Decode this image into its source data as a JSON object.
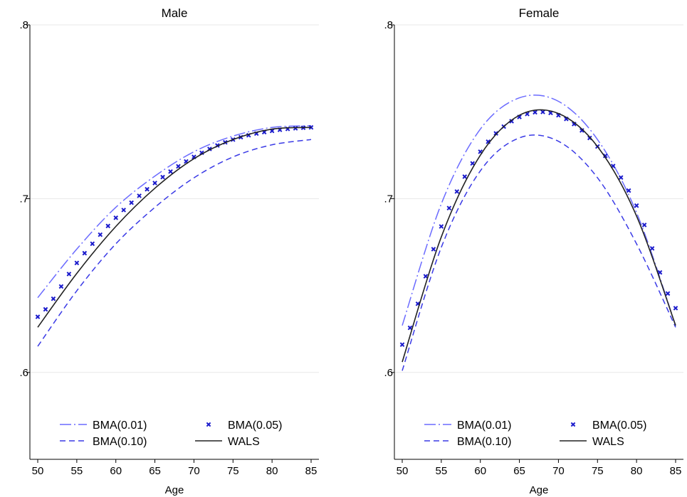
{
  "chart_data": [
    {
      "type": "line",
      "title": "Male",
      "xlabel": "Age",
      "ylabel": "",
      "xlim": [
        50,
        85
      ],
      "ylim": [
        0.55,
        0.8
      ],
      "xticks": [
        50,
        55,
        60,
        65,
        70,
        75,
        80,
        85
      ],
      "xtick_labels": [
        "50",
        "55",
        "60",
        "65",
        "70",
        "75",
        "80",
        "85"
      ],
      "yticks": [
        0.6,
        0.7,
        0.8
      ],
      "ytick_labels": [
        ".6",
        ".7",
        ".8"
      ],
      "grid": true,
      "legend": "bottom-inside",
      "x": [
        50,
        55,
        60,
        65,
        70,
        75,
        80,
        85
      ],
      "series": [
        {
          "name": "BMA(0.01)",
          "style": "dash-dot",
          "color": "#6b6bff",
          "values": [
            0.643,
            0.671,
            0.695,
            0.713,
            0.727,
            0.736,
            0.741,
            0.742
          ]
        },
        {
          "name": "BMA(0.05)",
          "style": "markers",
          "color": "#1a1acc",
          "values": [
            0.632,
            0.663,
            0.689,
            0.709,
            0.724,
            0.734,
            0.739,
            0.741
          ]
        },
        {
          "name": "BMA(0.10)",
          "style": "dash",
          "color": "#3a3ae6",
          "values": [
            0.615,
            0.647,
            0.674,
            0.695,
            0.712,
            0.724,
            0.731,
            0.734
          ]
        },
        {
          "name": "WALS",
          "style": "solid",
          "color": "#222222",
          "values": [
            0.626,
            0.657,
            0.684,
            0.706,
            0.723,
            0.734,
            0.74,
            0.741
          ]
        }
      ]
    },
    {
      "type": "line",
      "title": "Female",
      "xlabel": "Age",
      "ylabel": "",
      "xlim": [
        50,
        85
      ],
      "ylim": [
        0.55,
        0.8
      ],
      "xticks": [
        50,
        55,
        60,
        65,
        70,
        75,
        80,
        85
      ],
      "xtick_labels": [
        "50",
        "55",
        "60",
        "65",
        "70",
        "75",
        "80",
        "85"
      ],
      "yticks": [
        0.6,
        0.7,
        0.8
      ],
      "ytick_labels": [
        ".6",
        ".7",
        ".8"
      ],
      "grid": true,
      "legend": "bottom-inside",
      "x": [
        50,
        55,
        60,
        65,
        70,
        75,
        80,
        85
      ],
      "series": [
        {
          "name": "BMA(0.01)",
          "style": "dash-dot",
          "color": "#6b6bff",
          "values": [
            0.627,
            0.697,
            0.74,
            0.758,
            0.756,
            0.734,
            0.692,
            0.627
          ]
        },
        {
          "name": "BMA(0.05)",
          "style": "markers",
          "color": "#1a1acc",
          "values": [
            0.616,
            0.684,
            0.727,
            0.747,
            0.748,
            0.73,
            0.696,
            0.637
          ]
        },
        {
          "name": "BMA(0.10)",
          "style": "dash",
          "color": "#3a3ae6",
          "values": [
            0.601,
            0.672,
            0.716,
            0.735,
            0.733,
            0.712,
            0.674,
            0.626
          ]
        },
        {
          "name": "WALS",
          "style": "solid",
          "color": "#222222",
          "values": [
            0.606,
            0.678,
            0.725,
            0.748,
            0.749,
            0.73,
            0.69,
            0.627
          ]
        }
      ]
    }
  ]
}
